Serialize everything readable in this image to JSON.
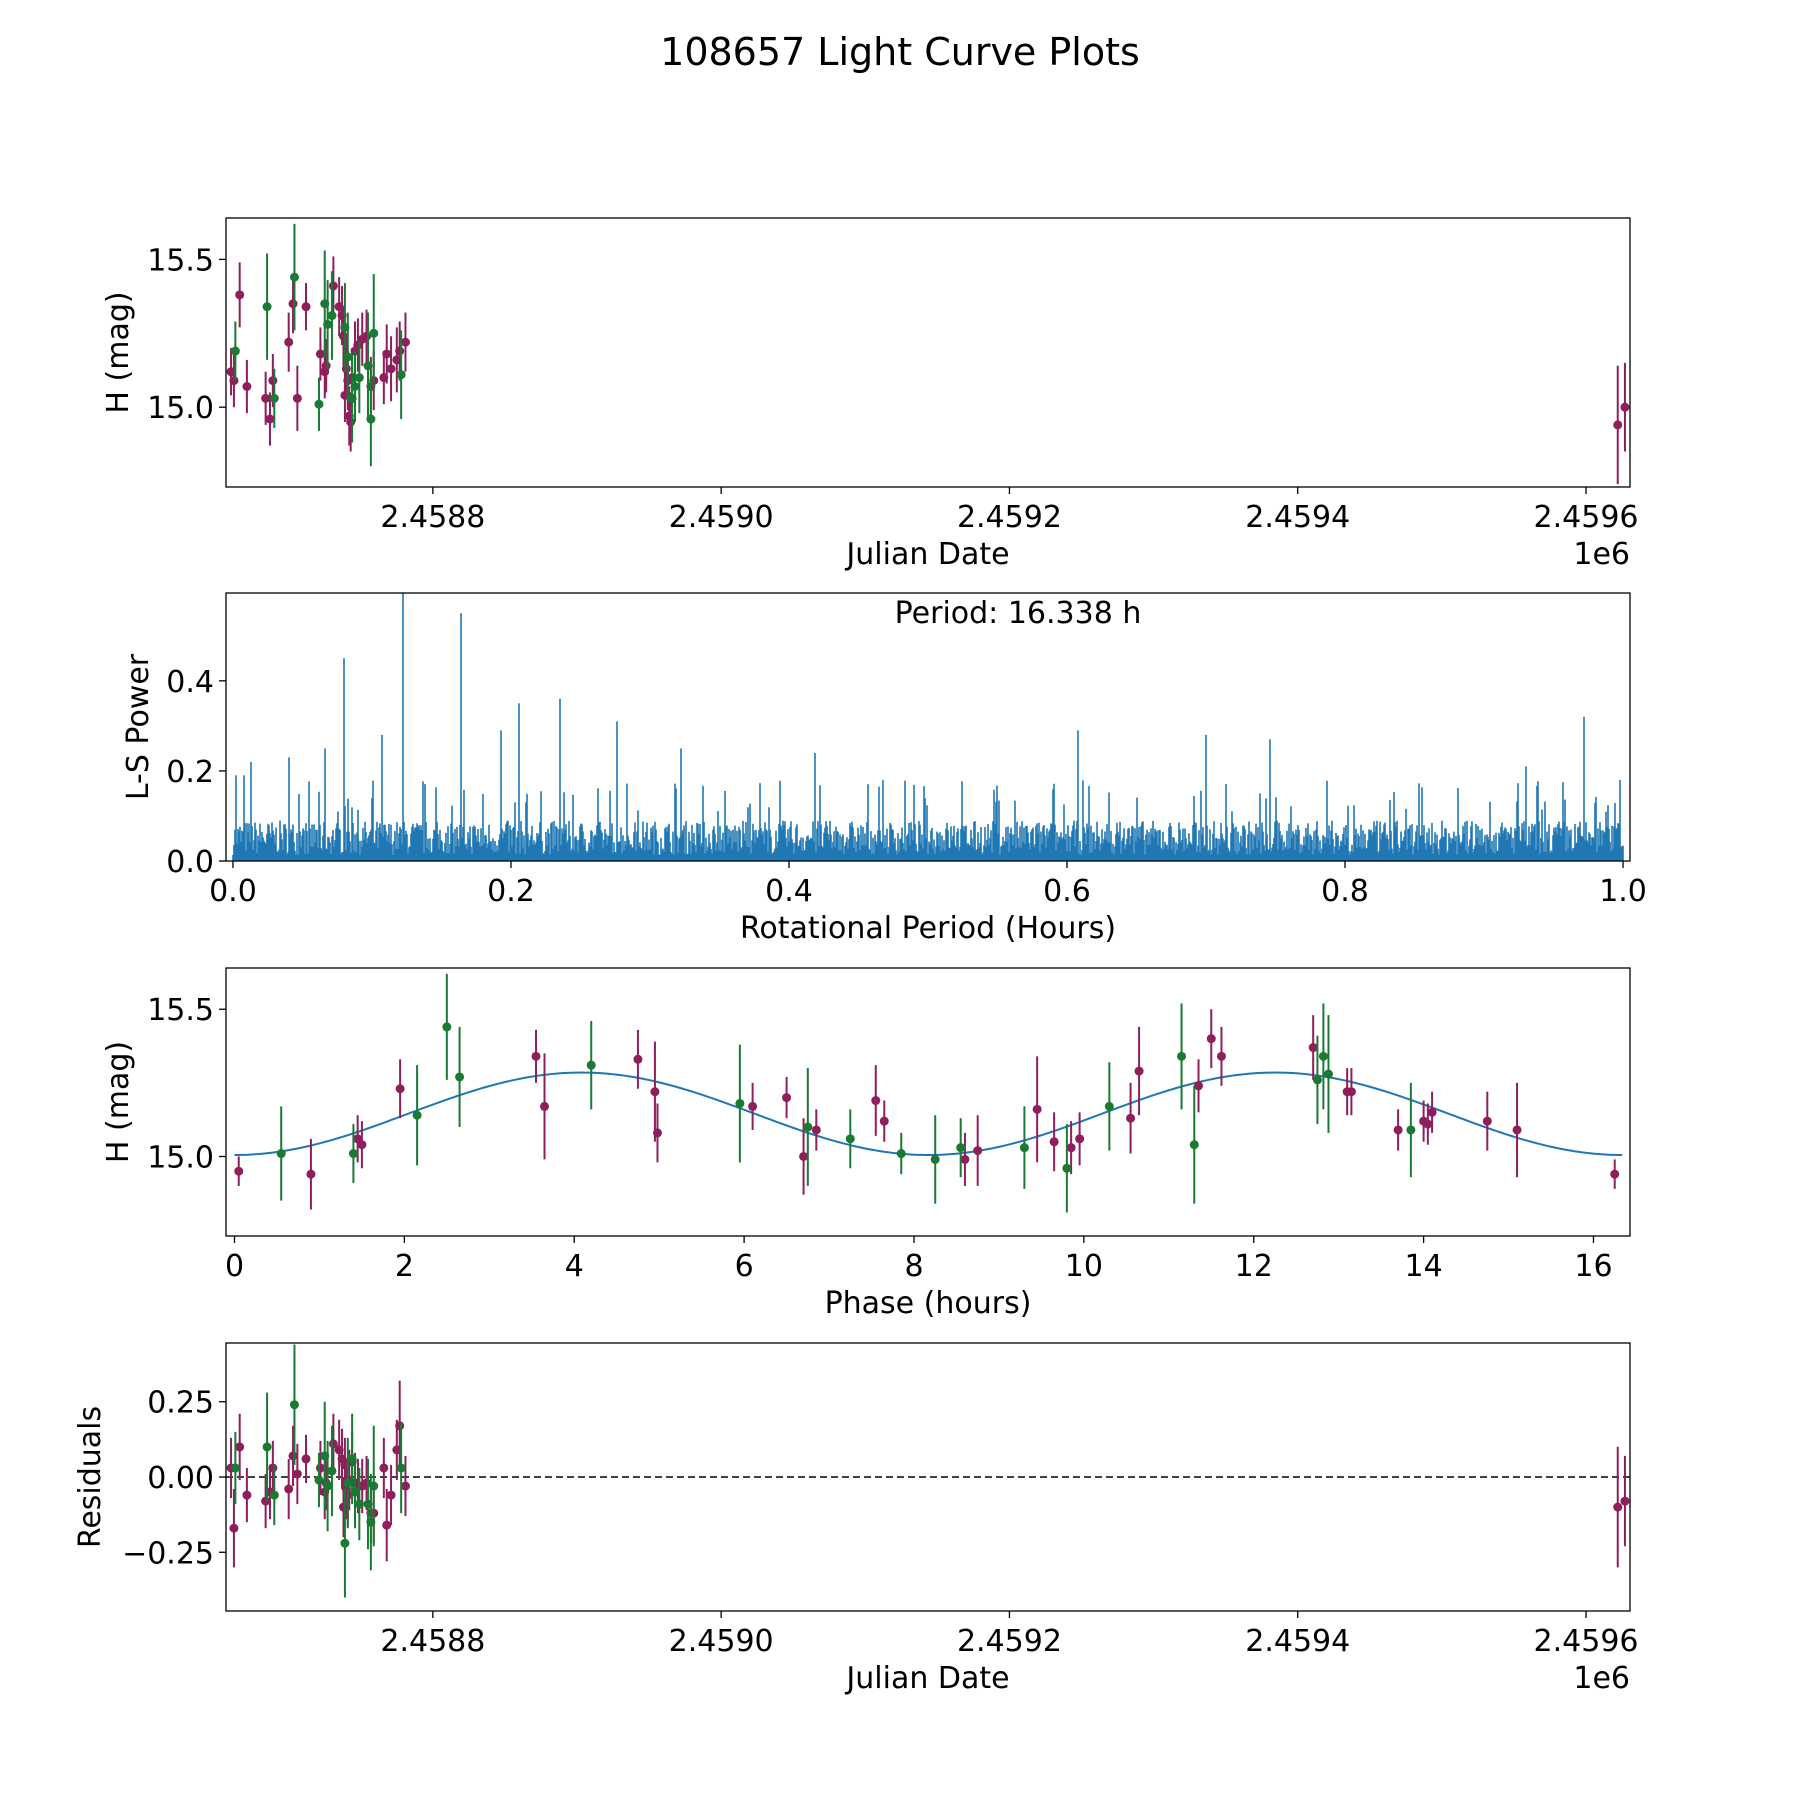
{
  "figure": {
    "title": "108657 Light Curve Plots"
  },
  "colors": {
    "ztf_r": "#8e1f5c",
    "ztf_g": "#1a7a34",
    "curve": "#1f77b4",
    "axis": "#000000"
  },
  "chart_data": [
    {
      "id": "lightcurve",
      "type": "scatter",
      "title": "",
      "xlabel": "Julian Date",
      "ylabel": "H (mag)",
      "x_offset_label": "1e6",
      "xlim": [
        2458656.5,
        2459630.5
      ],
      "ylim": [
        14.73,
        15.64
      ],
      "xticks": [
        2458800,
        2459000,
        2459200,
        2459400,
        2459600
      ],
      "xtick_labels": [
        "2.4588",
        "2.4590",
        "2.4592",
        "2.4594",
        "2.4596"
      ],
      "yticks": [
        15.0,
        15.5
      ],
      "ytick_labels": [
        "15.0",
        "15.5"
      ],
      "series": [
        {
          "name": "r",
          "points": [
            [
              2458660,
              15.12,
              0.08
            ],
            [
              2458662,
              15.09,
              0.09
            ],
            [
              2458666,
              15.38,
              0.11
            ],
            [
              2458671,
              15.07,
              0.09
            ],
            [
              2458684,
              15.03,
              0.09
            ],
            [
              2458687,
              14.96,
              0.09
            ],
            [
              2458689,
              15.09,
              0.09
            ],
            [
              2458700,
              15.22,
              0.1
            ],
            [
              2458703,
              15.35,
              0.1
            ],
            [
              2458706,
              15.03,
              0.11
            ],
            [
              2458712,
              15.34,
              0.08
            ],
            [
              2458722,
              15.18,
              0.09
            ],
            [
              2458725,
              15.12,
              0.09
            ],
            [
              2458726,
              15.14,
              0.09
            ],
            [
              2458731,
              15.41,
              0.1
            ],
            [
              2458735,
              15.34,
              0.1
            ],
            [
              2458737,
              15.31,
              0.1
            ],
            [
              2458738,
              15.24,
              0.1
            ],
            [
              2458739,
              15.04,
              0.09
            ],
            [
              2458740,
              15.13,
              0.1
            ],
            [
              2458741,
              15.09,
              0.1
            ],
            [
              2458742,
              14.97,
              0.1
            ],
            [
              2458743,
              14.95,
              0.1
            ],
            [
              2458744,
              15.1,
              0.1
            ],
            [
              2458746,
              15.19,
              0.1
            ],
            [
              2458748,
              15.21,
              0.09
            ],
            [
              2458751,
              15.23,
              0.09
            ],
            [
              2458754,
              15.24,
              0.09
            ],
            [
              2458757,
              15.07,
              0.1
            ],
            [
              2458759,
              15.09,
              0.1
            ],
            [
              2458766,
              15.1,
              0.09
            ],
            [
              2458768,
              15.18,
              0.1
            ],
            [
              2458771,
              15.13,
              0.11
            ],
            [
              2458775,
              15.16,
              0.11
            ],
            [
              2458777,
              15.19,
              0.1
            ],
            [
              2458781,
              15.22,
              0.1
            ],
            [
              2459622,
              14.94,
              0.2
            ],
            [
              2459627,
              15.0,
              0.15
            ]
          ]
        },
        {
          "name": "g",
          "points": [
            [
              2458663,
              15.19,
              0.1
            ],
            [
              2458685,
              15.34,
              0.18
            ],
            [
              2458690,
              15.03,
              0.1
            ],
            [
              2458704,
              15.44,
              0.18
            ],
            [
              2458721,
              15.01,
              0.09
            ],
            [
              2458725,
              15.35,
              0.18
            ],
            [
              2458727,
              15.28,
              0.15
            ],
            [
              2458730,
              15.31,
              0.15
            ],
            [
              2458739,
              15.27,
              0.15
            ],
            [
              2458741,
              15.17,
              0.15
            ],
            [
              2458744,
              15.03,
              0.15
            ],
            [
              2458746,
              15.07,
              0.12
            ],
            [
              2458749,
              15.1,
              0.12
            ],
            [
              2458755,
              15.14,
              0.18
            ],
            [
              2458757,
              14.96,
              0.16
            ],
            [
              2458759,
              15.25,
              0.2
            ],
            [
              2458778,
              15.11,
              0.15
            ]
          ]
        }
      ]
    },
    {
      "id": "periodogram",
      "type": "line",
      "title": "",
      "xlabel": "Rotational Period (Hours)",
      "ylabel": "L-S Power",
      "annotation": "Period: 16.338 h",
      "xlim": [
        -0.005,
        1.005
      ],
      "ylim": [
        0,
        0.595
      ],
      "xticks": [
        0.0,
        0.2,
        0.4,
        0.6,
        0.8,
        1.0
      ],
      "xtick_labels": [
        "0.0",
        "0.2",
        "0.4",
        "0.6",
        "0.8",
        "1.0"
      ],
      "yticks": [
        0.0,
        0.2,
        0.4
      ],
      "ytick_labels": [
        "0.0",
        "0.2",
        "0.4"
      ],
      "noise_level": 0.09,
      "peaks": [
        [
          0.002,
          0.19
        ],
        [
          0.008,
          0.19
        ],
        [
          0.013,
          0.22
        ],
        [
          0.04,
          0.23
        ],
        [
          0.066,
          0.25
        ],
        [
          0.08,
          0.45
        ],
        [
          0.107,
          0.28
        ],
        [
          0.122,
          0.6
        ],
        [
          0.164,
          0.55
        ],
        [
          0.193,
          0.29
        ],
        [
          0.206,
          0.35
        ],
        [
          0.235,
          0.36
        ],
        [
          0.276,
          0.31
        ],
        [
          0.322,
          0.25
        ],
        [
          0.419,
          0.24
        ],
        [
          0.608,
          0.29
        ],
        [
          0.7,
          0.28
        ],
        [
          0.746,
          0.27
        ],
        [
          0.93,
          0.21
        ],
        [
          0.972,
          0.32
        ],
        [
          0.998,
          0.18
        ]
      ]
    },
    {
      "id": "phased",
      "type": "scatter",
      "title": "",
      "xlabel": "Phase (hours)",
      "ylabel": "H (mag)",
      "xlim": [
        -0.1,
        16.43
      ],
      "ylim": [
        14.73,
        15.64
      ],
      "xticks": [
        0,
        2,
        4,
        6,
        8,
        10,
        12,
        14,
        16
      ],
      "xtick_labels": [
        "0",
        "2",
        "4",
        "6",
        "8",
        "10",
        "12",
        "14",
        "16"
      ],
      "yticks": [
        15.0,
        15.5
      ],
      "ytick_labels": [
        "15.0",
        "15.5"
      ],
      "model": {
        "mean": 15.145,
        "amplitude": 0.14,
        "period": 16.338,
        "phase_min": 0.0,
        "phase_max": 16.338
      },
      "series": [
        {
          "name": "r",
          "points": [
            [
              0.05,
              14.95,
              0.05
            ],
            [
              0.9,
              14.94,
              0.12
            ],
            [
              1.45,
              15.06,
              0.08
            ],
            [
              1.5,
              15.04,
              0.08
            ],
            [
              1.95,
              15.23,
              0.1
            ],
            [
              3.55,
              15.34,
              0.09
            ],
            [
              3.65,
              15.17,
              0.18
            ],
            [
              4.75,
              15.33,
              0.1
            ],
            [
              4.95,
              15.22,
              0.17
            ],
            [
              4.98,
              15.08,
              0.1
            ],
            [
              6.1,
              15.17,
              0.08
            ],
            [
              6.5,
              15.2,
              0.07
            ],
            [
              6.7,
              15.0,
              0.13
            ],
            [
              6.85,
              15.09,
              0.07
            ],
            [
              7.55,
              15.19,
              0.12
            ],
            [
              7.65,
              15.12,
              0.07
            ],
            [
              8.6,
              14.99,
              0.09
            ],
            [
              8.75,
              15.02,
              0.12
            ],
            [
              9.45,
              15.16,
              0.18
            ],
            [
              9.65,
              15.05,
              0.1
            ],
            [
              9.85,
              15.03,
              0.09
            ],
            [
              9.95,
              15.06,
              0.09
            ],
            [
              10.55,
              15.13,
              0.12
            ],
            [
              10.65,
              15.29,
              0.15
            ],
            [
              11.35,
              15.24,
              0.09
            ],
            [
              11.5,
              15.4,
              0.1
            ],
            [
              11.62,
              15.34,
              0.1
            ],
            [
              12.7,
              15.37,
              0.11
            ],
            [
              13.1,
              15.22,
              0.08
            ],
            [
              13.15,
              15.22,
              0.08
            ],
            [
              13.7,
              15.09,
              0.07
            ],
            [
              14.0,
              15.12,
              0.07
            ],
            [
              14.05,
              15.11,
              0.07
            ],
            [
              14.1,
              15.15,
              0.07
            ],
            [
              14.75,
              15.12,
              0.1
            ],
            [
              15.1,
              15.09,
              0.16
            ],
            [
              16.25,
              14.94,
              0.05
            ]
          ]
        },
        {
          "name": "g",
          "points": [
            [
              0.55,
              15.01,
              0.16
            ],
            [
              1.4,
              15.01,
              0.1
            ],
            [
              2.15,
              15.14,
              0.17
            ],
            [
              2.5,
              15.44,
              0.18
            ],
            [
              2.65,
              15.27,
              0.17
            ],
            [
              4.2,
              15.31,
              0.15
            ],
            [
              5.95,
              15.18,
              0.2
            ],
            [
              6.75,
              15.1,
              0.2
            ],
            [
              7.25,
              15.06,
              0.1
            ],
            [
              7.85,
              15.01,
              0.07
            ],
            [
              8.25,
              14.99,
              0.15
            ],
            [
              8.55,
              15.03,
              0.1
            ],
            [
              9.3,
              15.03,
              0.14
            ],
            [
              9.8,
              14.96,
              0.15
            ],
            [
              10.3,
              15.17,
              0.15
            ],
            [
              11.15,
              15.34,
              0.18
            ],
            [
              11.3,
              15.04,
              0.2
            ],
            [
              12.75,
              15.26,
              0.15
            ],
            [
              12.82,
              15.34,
              0.18
            ],
            [
              12.88,
              15.28,
              0.2
            ],
            [
              13.85,
              15.09,
              0.16
            ]
          ]
        }
      ]
    },
    {
      "id": "residuals",
      "type": "scatter",
      "title": "",
      "xlabel": "Julian Date",
      "ylabel": "Residuals",
      "x_offset_label": "1e6",
      "xlim": [
        2458656.5,
        2459630.5
      ],
      "ylim": [
        -0.445,
        0.445
      ],
      "xticks": [
        2458800,
        2459000,
        2459200,
        2459400,
        2459600
      ],
      "xtick_labels": [
        "2.4588",
        "2.4590",
        "2.4592",
        "2.4594",
        "2.4596"
      ],
      "yticks": [
        -0.25,
        0.0,
        0.25
      ],
      "ytick_labels": [
        "−0.25",
        "0.00",
        "0.25"
      ],
      "zero_line": true,
      "series": [
        {
          "name": "r",
          "points": [
            [
              2458660,
              0.03,
              0.1
            ],
            [
              2458662,
              -0.17,
              0.13
            ],
            [
              2458666,
              0.1,
              0.11
            ],
            [
              2458671,
              -0.06,
              0.09
            ],
            [
              2458684,
              -0.08,
              0.09
            ],
            [
              2458687,
              -0.05,
              0.09
            ],
            [
              2458689,
              0.03,
              0.09
            ],
            [
              2458700,
              -0.04,
              0.1
            ],
            [
              2458703,
              0.07,
              0.1
            ],
            [
              2458706,
              0.01,
              0.1
            ],
            [
              2458712,
              0.06,
              0.08
            ],
            [
              2458722,
              0.03,
              0.09
            ],
            [
              2458725,
              -0.05,
              0.09
            ],
            [
              2458726,
              -0.02,
              0.09
            ],
            [
              2458731,
              0.11,
              0.1
            ],
            [
              2458735,
              0.09,
              0.1
            ],
            [
              2458737,
              0.06,
              0.1
            ],
            [
              2458738,
              -0.1,
              0.1
            ],
            [
              2458739,
              0.04,
              0.09
            ],
            [
              2458740,
              -0.04,
              0.1
            ],
            [
              2458741,
              -0.06,
              0.1
            ],
            [
              2458742,
              -0.01,
              0.1
            ],
            [
              2458744,
              0.05,
              0.1
            ],
            [
              2458746,
              -0.02,
              0.1
            ],
            [
              2458748,
              -0.03,
              0.09
            ],
            [
              2458751,
              -0.03,
              0.09
            ],
            [
              2458754,
              -0.02,
              0.09
            ],
            [
              2458757,
              -0.12,
              0.1
            ],
            [
              2458759,
              -0.12,
              0.1
            ],
            [
              2458766,
              0.03,
              0.1
            ],
            [
              2458768,
              -0.16,
              0.12
            ],
            [
              2458771,
              -0.06,
              0.1
            ],
            [
              2458775,
              0.09,
              0.1
            ],
            [
              2458777,
              0.17,
              0.15
            ],
            [
              2458781,
              -0.03,
              0.1
            ],
            [
              2459622,
              -0.1,
              0.2
            ],
            [
              2459627,
              -0.08,
              0.15
            ]
          ]
        },
        {
          "name": "g",
          "points": [
            [
              2458663,
              0.03,
              0.12
            ],
            [
              2458685,
              0.1,
              0.18
            ],
            [
              2458690,
              -0.06,
              0.1
            ],
            [
              2458704,
              0.24,
              0.2
            ],
            [
              2458721,
              -0.01,
              0.09
            ],
            [
              2458725,
              0.07,
              0.18
            ],
            [
              2458727,
              -0.03,
              0.15
            ],
            [
              2458730,
              0.02,
              0.15
            ],
            [
              2458739,
              -0.22,
              0.18
            ],
            [
              2458741,
              -0.02,
              0.15
            ],
            [
              2458744,
              0.06,
              0.15
            ],
            [
              2458746,
              -0.05,
              0.12
            ],
            [
              2458749,
              -0.09,
              0.12
            ],
            [
              2458755,
              -0.09,
              0.15
            ],
            [
              2458757,
              -0.15,
              0.16
            ],
            [
              2458759,
              -0.03,
              0.2
            ],
            [
              2458778,
              0.03,
              0.15
            ]
          ]
        }
      ]
    }
  ]
}
